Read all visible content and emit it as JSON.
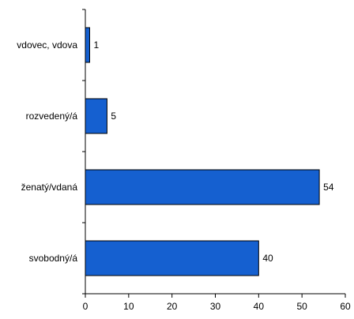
{
  "chart_data": {
    "type": "bar",
    "orientation": "horizontal",
    "categories": [
      "vdovec, vdova",
      "rozvedený/á",
      "ženatý/vdaná",
      "svobodný/á"
    ],
    "values": [
      1,
      5,
      54,
      40
    ],
    "data_labels": [
      "1",
      "5",
      "54",
      "40"
    ],
    "xlim": [
      0,
      60
    ],
    "x_ticks": [
      0,
      10,
      20,
      30,
      40,
      50,
      60
    ],
    "grid": false,
    "legend": "none",
    "bar_color": "#1560d0"
  }
}
